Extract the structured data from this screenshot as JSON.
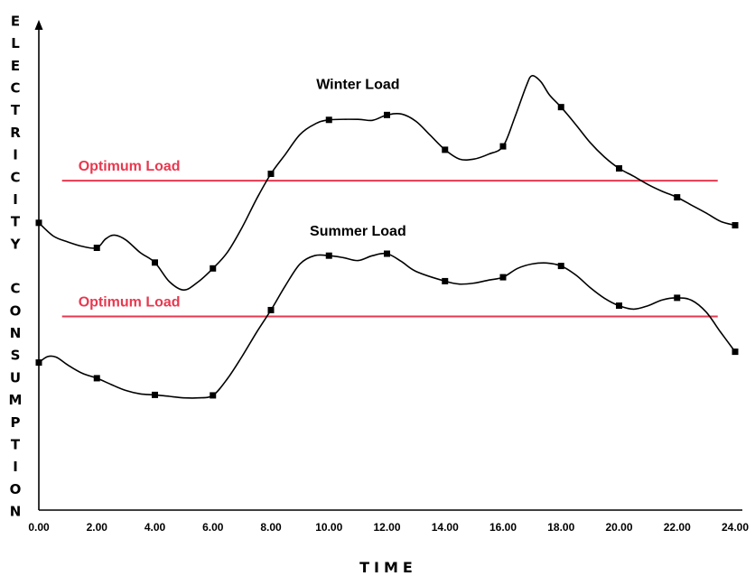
{
  "chart_data": {
    "type": "line",
    "xlabel": "TIME",
    "ylabel": "ELECTRICITY CONSUMPTION",
    "xlim": [
      0,
      24
    ],
    "ylim": [
      0,
      100
    ],
    "x_ticks": [
      "0.00",
      "2.00",
      "4.00",
      "6.00",
      "8.00",
      "10.00",
      "12.00",
      "14.00",
      "16.00",
      "18.00",
      "20.00",
      "22.00",
      "24.00"
    ],
    "grid": false,
    "series": [
      {
        "name": "Winter Load",
        "color": "#000000",
        "curve": [
          [
            0,
            58.6
          ],
          [
            0.5,
            55.9
          ],
          [
            1,
            54.7
          ],
          [
            1.5,
            53.8
          ],
          [
            2,
            53.5
          ],
          [
            2.3,
            55.3
          ],
          [
            2.6,
            56.1
          ],
          [
            3,
            55.1
          ],
          [
            3.5,
            52.5
          ],
          [
            4,
            50.5
          ],
          [
            4.5,
            46.6
          ],
          [
            5,
            44.9
          ],
          [
            5.5,
            46.6
          ],
          [
            6,
            49.3
          ],
          [
            6.5,
            52.6
          ],
          [
            7,
            57.6
          ],
          [
            7.5,
            63.4
          ],
          [
            8,
            68.6
          ],
          [
            8.5,
            72.6
          ],
          [
            9,
            76.6
          ],
          [
            9.5,
            78.7
          ],
          [
            10,
            79.6
          ],
          [
            11,
            79.7
          ],
          [
            11.5,
            79.5
          ],
          [
            12,
            80.6
          ],
          [
            12.5,
            80.8
          ],
          [
            13,
            79.3
          ],
          [
            13.5,
            76.4
          ],
          [
            14,
            73.5
          ],
          [
            14.5,
            71.6
          ],
          [
            15,
            71.6
          ],
          [
            15.5,
            72.6
          ],
          [
            16,
            74.2
          ],
          [
            16.4,
            80
          ],
          [
            16.8,
            86.5
          ],
          [
            17,
            88.6
          ],
          [
            17.3,
            87.4
          ],
          [
            17.6,
            84.7
          ],
          [
            18,
            82.2
          ],
          [
            18.5,
            78.7
          ],
          [
            19,
            75
          ],
          [
            19.5,
            72
          ],
          [
            20,
            69.7
          ],
          [
            20.5,
            68.1
          ],
          [
            21,
            66.4
          ],
          [
            21.5,
            65
          ],
          [
            22,
            63.8
          ],
          [
            22.5,
            62.2
          ],
          [
            23,
            60.6
          ],
          [
            23.5,
            58.9
          ],
          [
            24,
            58.1
          ]
        ],
        "markers": [
          [
            0,
            58.6
          ],
          [
            2,
            53.5
          ],
          [
            4,
            50.5
          ],
          [
            6,
            49.3
          ],
          [
            8,
            68.6
          ],
          [
            10,
            79.6
          ],
          [
            12,
            80.6
          ],
          [
            14,
            73.5
          ],
          [
            16,
            74.2
          ],
          [
            18,
            82.2
          ],
          [
            20,
            69.7
          ],
          [
            22,
            63.8
          ],
          [
            24,
            58.1
          ]
        ]
      },
      {
        "name": "Summer Load",
        "color": "#000000",
        "curve": [
          [
            0,
            30.1
          ],
          [
            0.3,
            31.3
          ],
          [
            0.6,
            31.2
          ],
          [
            1,
            29.6
          ],
          [
            1.5,
            27.9
          ],
          [
            2,
            26.9
          ],
          [
            2.5,
            25.6
          ],
          [
            3,
            24.4
          ],
          [
            3.5,
            23.7
          ],
          [
            4,
            23.5
          ],
          [
            4.5,
            23.2
          ],
          [
            5,
            22.9
          ],
          [
            5.5,
            22.9
          ],
          [
            6,
            23.4
          ],
          [
            6.5,
            26.8
          ],
          [
            7,
            31.3
          ],
          [
            7.5,
            36.2
          ],
          [
            8,
            40.8
          ],
          [
            8.5,
            45.8
          ],
          [
            9,
            50.2
          ],
          [
            9.5,
            51.9
          ],
          [
            10,
            51.9
          ],
          [
            10.5,
            51.5
          ],
          [
            11,
            50.9
          ],
          [
            11.5,
            51.9
          ],
          [
            12,
            52.3
          ],
          [
            12.5,
            50.7
          ],
          [
            13,
            48.7
          ],
          [
            14,
            46.7
          ],
          [
            14.5,
            46.1
          ],
          [
            15,
            46.3
          ],
          [
            15.5,
            46.9
          ],
          [
            16,
            47.5
          ],
          [
            16.5,
            49.3
          ],
          [
            17,
            50.2
          ],
          [
            17.5,
            50.4
          ],
          [
            18,
            49.8
          ],
          [
            18.5,
            48
          ],
          [
            19,
            45.4
          ],
          [
            19.5,
            43.2
          ],
          [
            20,
            41.7
          ],
          [
            20.5,
            41
          ],
          [
            21,
            41.7
          ],
          [
            21.5,
            42.9
          ],
          [
            22,
            43.3
          ],
          [
            22.5,
            42.8
          ],
          [
            23,
            40.4
          ],
          [
            23.5,
            36.3
          ],
          [
            24,
            32.3
          ]
        ],
        "markers": [
          [
            0,
            30.1
          ],
          [
            2,
            26.9
          ],
          [
            4,
            23.5
          ],
          [
            6,
            23.4
          ],
          [
            8,
            40.8
          ],
          [
            10,
            51.9
          ],
          [
            12,
            52.3
          ],
          [
            14,
            46.7
          ],
          [
            16,
            47.5
          ],
          [
            18,
            49.8
          ],
          [
            20,
            41.7
          ],
          [
            22,
            43.3
          ],
          [
            24,
            32.3
          ]
        ]
      }
    ],
    "reference_lines": [
      {
        "label": "Optimum Load",
        "y": 67.2,
        "x_range": [
          0.8,
          23.4
        ],
        "color": "#e8384f"
      },
      {
        "label": "Optimum Load",
        "y": 39.5,
        "x_range": [
          0.8,
          23.4
        ],
        "color": "#e8384f"
      }
    ]
  }
}
